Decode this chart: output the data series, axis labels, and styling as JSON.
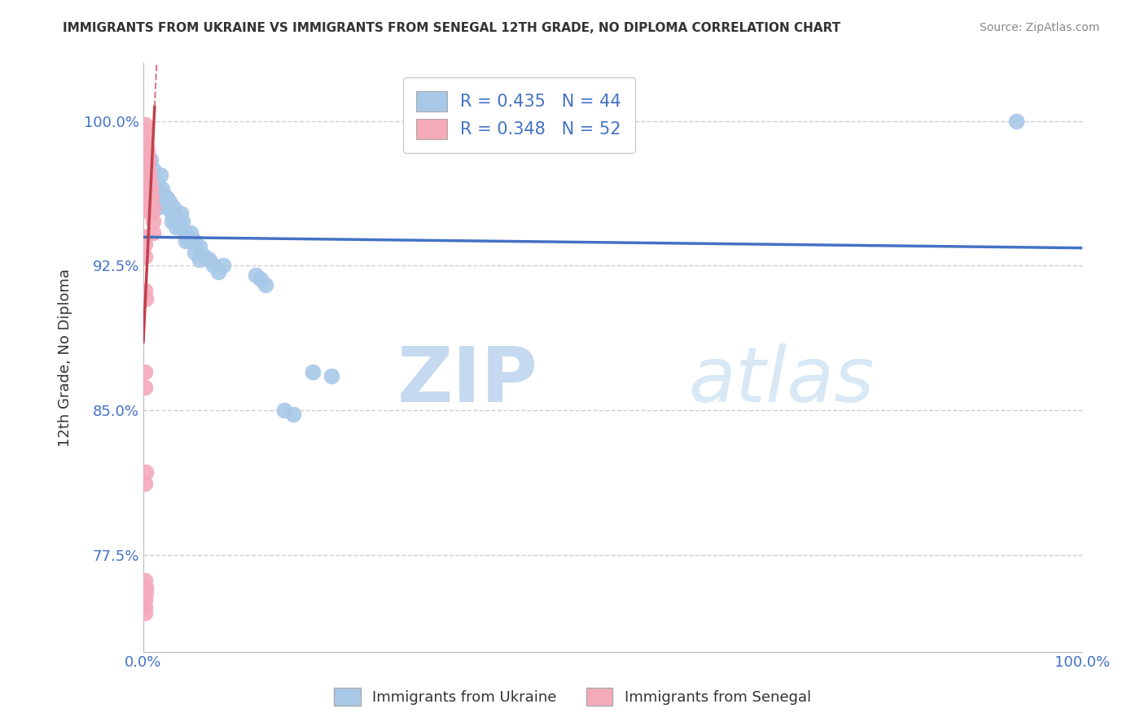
{
  "title": "IMMIGRANTS FROM UKRAINE VS IMMIGRANTS FROM SENEGAL 12TH GRADE, NO DIPLOMA CORRELATION CHART",
  "source": "Source: ZipAtlas.com",
  "ylabel": "12th Grade, No Diploma",
  "xlim": [
    0.0,
    1.0
  ],
  "ylim": [
    0.725,
    1.03
  ],
  "yticks": [
    0.775,
    0.85,
    0.925,
    1.0
  ],
  "ytick_labels": [
    "77.5%",
    "85.0%",
    "92.5%",
    "100.0%"
  ],
  "xtick_labels": [
    "0.0%",
    "100.0%"
  ],
  "ukraine_R": 0.435,
  "ukraine_N": 44,
  "senegal_R": 0.348,
  "senegal_N": 52,
  "ukraine_color": "#a8c8e8",
  "senegal_color": "#f4aabb",
  "ukraine_line_color": "#4472c4",
  "senegal_line_color": "#c0404a",
  "background_color": "#ffffff",
  "watermark_zip": "ZIP",
  "watermark_atlas": "atlas",
  "ukraine_x": [
    0.005,
    0.01,
    0.01,
    0.015,
    0.015,
    0.018,
    0.02,
    0.02,
    0.022,
    0.025,
    0.025,
    0.028,
    0.03,
    0.03,
    0.032,
    0.035,
    0.035,
    0.038,
    0.04,
    0.04,
    0.042,
    0.045,
    0.045,
    0.048,
    0.05,
    0.05,
    0.055,
    0.055,
    0.06,
    0.06,
    0.065,
    0.07,
    0.075,
    0.08,
    0.085,
    0.12,
    0.125,
    0.13,
    0.15,
    0.16,
    0.18,
    0.2,
    0.93,
    0.008
  ],
  "ukraine_y": [
    0.97,
    0.975,
    0.96,
    0.968,
    0.955,
    0.972,
    0.965,
    0.958,
    0.962,
    0.96,
    0.955,
    0.958,
    0.952,
    0.948,
    0.955,
    0.95,
    0.945,
    0.948,
    0.952,
    0.945,
    0.948,
    0.942,
    0.938,
    0.94,
    0.942,
    0.938,
    0.938,
    0.932,
    0.935,
    0.928,
    0.93,
    0.928,
    0.925,
    0.922,
    0.925,
    0.92,
    0.918,
    0.915,
    0.85,
    0.848,
    0.87,
    0.868,
    1.0,
    0.98
  ],
  "senegal_x": [
    0.002,
    0.002,
    0.003,
    0.003,
    0.004,
    0.004,
    0.004,
    0.005,
    0.005,
    0.005,
    0.006,
    0.006,
    0.006,
    0.007,
    0.007,
    0.008,
    0.008,
    0.008,
    0.009,
    0.009,
    0.01,
    0.01,
    0.01,
    0.002,
    0.003,
    0.003,
    0.004,
    0.004,
    0.005,
    0.006,
    0.007,
    0.008,
    0.002,
    0.003,
    0.002,
    0.003,
    0.004,
    0.002,
    0.003,
    0.002,
    0.002,
    0.003,
    0.002,
    0.002,
    0.003,
    0.002,
    0.002,
    0.003,
    0.002,
    0.002,
    0.002,
    0.002
  ],
  "senegal_y": [
    0.998,
    0.99,
    0.988,
    0.982,
    0.985,
    0.978,
    0.972,
    0.98,
    0.975,
    0.968,
    0.972,
    0.965,
    0.958,
    0.968,
    0.96,
    0.965,
    0.958,
    0.952,
    0.96,
    0.952,
    0.955,
    0.948,
    0.942,
    0.995,
    0.988,
    0.98,
    0.982,
    0.975,
    0.972,
    0.968,
    0.965,
    0.96,
    0.975,
    0.97,
    0.965,
    0.96,
    0.955,
    0.912,
    0.908,
    0.87,
    0.862,
    0.818,
    0.812,
    0.762,
    0.758,
    0.752,
    0.748,
    0.755,
    0.745,
    0.94,
    0.936,
    0.93
  ]
}
